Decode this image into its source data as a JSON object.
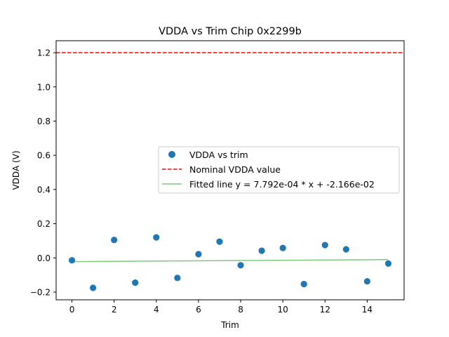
{
  "chart_data": {
    "type": "scatter",
    "title": "VDDA vs Trim Chip 0x2299b",
    "xlabel": "Trim",
    "ylabel": "VDDA (V)",
    "xlim": [
      -0.75,
      15.75
    ],
    "ylim": [
      -0.245,
      1.27
    ],
    "xticks": [
      0,
      2,
      4,
      6,
      8,
      10,
      12,
      14
    ],
    "yticks": [
      -0.2,
      0.0,
      0.2,
      0.4,
      0.6,
      0.8,
      1.0,
      1.2
    ],
    "ytick_labels": [
      "−0.2",
      "0.0",
      "0.2",
      "0.4",
      "0.6",
      "0.8",
      "1.0",
      "1.2"
    ],
    "grid": false,
    "legend_position": "center-right",
    "series": [
      {
        "name": "VDDA vs trim",
        "kind": "scatter",
        "color": "#1f77b4",
        "x": [
          0,
          1,
          2,
          3,
          4,
          5,
          6,
          7,
          8,
          9,
          10,
          11,
          12,
          13,
          14,
          15
        ],
        "y": [
          -0.014,
          -0.175,
          0.105,
          -0.145,
          0.12,
          -0.117,
          0.022,
          0.095,
          -0.043,
          0.042,
          0.058,
          -0.153,
          0.075,
          0.05,
          -0.137,
          -0.033
        ]
      },
      {
        "name": "Nominal VDDA value",
        "kind": "hline",
        "color": "#ff0000",
        "y": 1.2
      },
      {
        "name": "Fitted line y = 7.792e-04 * x + -2.166e-02",
        "kind": "line",
        "color": "#7fc97f",
        "slope": 0.0007792,
        "intercept": -0.02166,
        "x": [
          0,
          15
        ]
      }
    ]
  }
}
